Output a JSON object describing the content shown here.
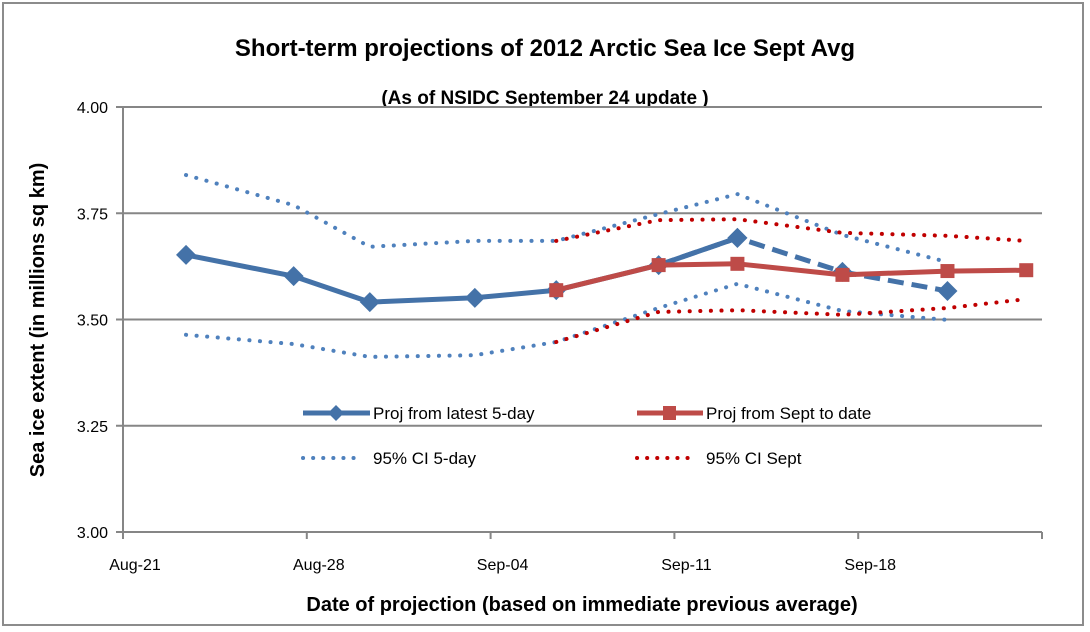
{
  "chart_data": {
    "type": "line",
    "title": "Short-term projections of 2012 Arctic Sea Ice Sept Avg",
    "subtitle": "(As of NSIDC  September 24 update )",
    "xlabel": "Date of projection (based on immediate previous average)",
    "ylabel": "Sea ice extent (in millions sq km)",
    "ylim": [
      3.0,
      4.0
    ],
    "yticks": [
      "3.00",
      "3.25",
      "3.50",
      "3.75",
      "4.00"
    ],
    "ytick_values": [
      3.0,
      3.25,
      3.5,
      3.75,
      4.0
    ],
    "xlim_days": [
      0,
      35
    ],
    "xticks": [
      "Aug-21",
      "Aug-28",
      "Sep-04",
      "Sep-11",
      "Sep-18"
    ],
    "xtick_days": [
      0,
      7,
      14,
      21,
      28
    ],
    "grid": true,
    "legend_position": "center-bottom",
    "series": [
      {
        "name": "Proj from latest 5-day",
        "style": "solid-diamond",
        "color": "#4472a8",
        "x_days": [
          2.4,
          6.5,
          9.4,
          13.4,
          16.5,
          20.4,
          23.4
        ],
        "x": [
          "Aug-23",
          "Aug-27",
          "Aug-30",
          "Sep-03",
          "Sep-06",
          "Sep-10",
          "Sep-13"
        ],
        "values": [
          3.652,
          3.602,
          3.541,
          3.551,
          3.569,
          3.628,
          3.692
        ]
      },
      {
        "name": "Proj from latest 5-day (continued)",
        "style": "dashed-diamond",
        "color": "#4472a8",
        "legend": false,
        "x_days": [
          20.4,
          23.4,
          27.4,
          31.4
        ],
        "x": [
          "Sep-10",
          "Sep-13",
          "Sep-17",
          "Sep-21"
        ],
        "values": [
          3.628,
          3.692,
          3.612,
          3.567
        ]
      },
      {
        "name": "Proj from Sept to date",
        "style": "solid-square",
        "color": "#be4b48",
        "x_days": [
          16.5,
          20.4,
          23.4,
          27.4,
          31.4,
          34.4
        ],
        "x": [
          "Sep-06",
          "Sep-10",
          "Sep-13",
          "Sep-17",
          "Sep-21",
          "Sep-24"
        ],
        "values": [
          3.569,
          3.628,
          3.631,
          3.605,
          3.614,
          3.616
        ]
      },
      {
        "name": "95% CI 5-day",
        "style": "dotted",
        "color": "#4f81bd",
        "x_days": [
          2.4,
          6.5,
          9.4,
          13.4,
          16.5,
          20.4,
          23.4,
          27.4,
          31.4
        ],
        "upper": [
          3.84,
          3.769,
          3.671,
          3.685,
          3.685,
          3.748,
          3.795,
          3.699,
          3.635
        ],
        "lower": [
          3.464,
          3.442,
          3.412,
          3.416,
          3.447,
          3.527,
          3.584,
          3.52,
          3.499
        ]
      },
      {
        "name": "95% CI Sept",
        "style": "dotted",
        "color": "#c00000",
        "x_days": [
          16.5,
          20.4,
          23.4,
          27.4,
          31.4,
          34.4
        ],
        "upper": [
          3.685,
          3.734,
          3.736,
          3.704,
          3.697,
          3.685
        ],
        "lower": [
          3.447,
          3.518,
          3.522,
          3.511,
          3.527,
          3.548
        ]
      }
    ],
    "legend": [
      {
        "label": "Proj from latest 5-day",
        "color": "#4472a8",
        "style": "solid-diamond"
      },
      {
        "label": "Proj from Sept to date",
        "color": "#be4b48",
        "style": "solid-square"
      },
      {
        "label": "95% CI 5-day",
        "color": "#4f81bd",
        "style": "dotted"
      },
      {
        "label": "95% CI Sept",
        "color": "#c00000",
        "style": "dotted"
      }
    ]
  }
}
